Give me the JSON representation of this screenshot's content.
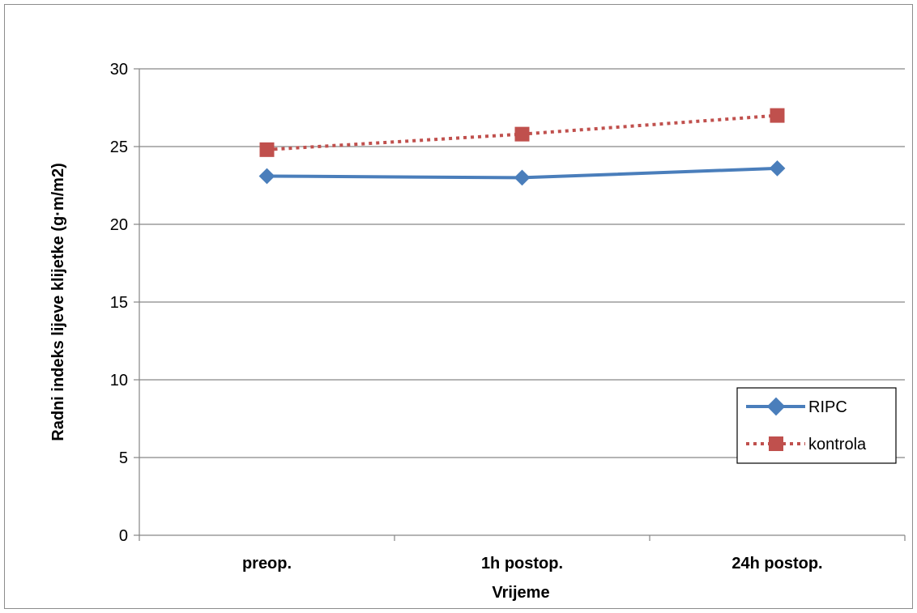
{
  "chart_data": {
    "type": "line",
    "title": "",
    "xlabel": "Vrijeme",
    "ylabel": "Radni indeks lijeve klijetke (g·m/m2)",
    "categories": [
      "preop.",
      "1h postop.",
      "24h postop."
    ],
    "ylim": [
      0,
      30
    ],
    "yticks": [
      0,
      5,
      10,
      15,
      20,
      25,
      30
    ],
    "grid": true,
    "legend_position": "bottom-right",
    "series": [
      {
        "name": "RIPC",
        "values": [
          23.1,
          23.0,
          23.6
        ],
        "color": "#4a7ebb",
        "style": "solid",
        "marker": "diamond"
      },
      {
        "name": "kontrola",
        "values": [
          24.8,
          25.8,
          27.0
        ],
        "color": "#c0504d",
        "style": "dotted",
        "marker": "square"
      }
    ]
  }
}
